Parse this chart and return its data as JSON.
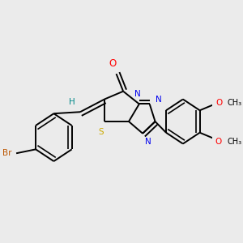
{
  "background_color": "#ebebeb",
  "fig_size": [
    3.0,
    3.0
  ],
  "dpi": 100,
  "atom_colors": {
    "C": "#000000",
    "N": "#0000ee",
    "O": "#ff0000",
    "S": "#ccaa00",
    "Br": "#bb5500",
    "H": "#008888"
  },
  "bond_color": "#000000",
  "bond_width": 1.4,
  "font_size_atom": 8.5,
  "font_size_label": 7.5
}
